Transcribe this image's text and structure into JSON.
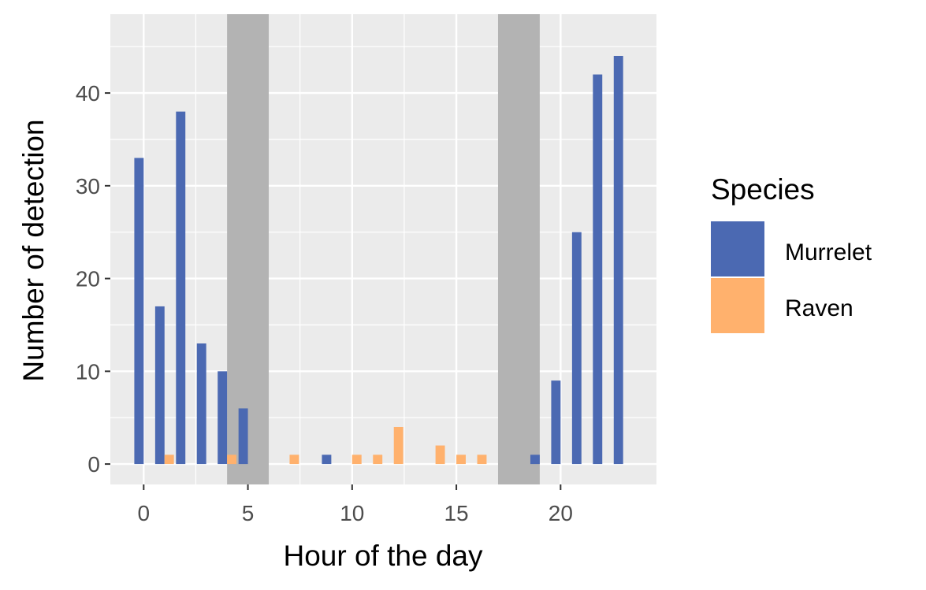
{
  "chart_data": {
    "type": "bar",
    "title": "",
    "xlabel": "Hour of the day",
    "ylabel": "Number of detection",
    "xlim": [
      -1.6,
      24.6
    ],
    "ylim": [
      -2.2,
      48.5
    ],
    "xticks": [
      0,
      5,
      10,
      15,
      20
    ],
    "yticks": [
      0,
      10,
      20,
      30,
      40
    ],
    "grid": true,
    "legend": {
      "title": "Species",
      "position": "right"
    },
    "shaded_periods": [
      [
        4,
        6
      ],
      [
        17,
        19
      ]
    ],
    "series": [
      {
        "name": "Murrelet",
        "color": "#4b69b2",
        "points": [
          {
            "hour": 0,
            "value": 33
          },
          {
            "hour": 1,
            "value": 17
          },
          {
            "hour": 2,
            "value": 38
          },
          {
            "hour": 3,
            "value": 13
          },
          {
            "hour": 4,
            "value": 10
          },
          {
            "hour": 5,
            "value": 6
          },
          {
            "hour": 9,
            "value": 1
          },
          {
            "hour": 19,
            "value": 1
          },
          {
            "hour": 20,
            "value": 9
          },
          {
            "hour": 21,
            "value": 25
          },
          {
            "hour": 22,
            "value": 42
          },
          {
            "hour": 23,
            "value": 44
          }
        ]
      },
      {
        "name": "Raven",
        "color": "#ffb16d",
        "points": [
          {
            "hour": 1,
            "value": 1
          },
          {
            "hour": 4,
            "value": 1
          },
          {
            "hour": 7,
            "value": 1
          },
          {
            "hour": 10,
            "value": 1
          },
          {
            "hour": 11,
            "value": 1
          },
          {
            "hour": 12,
            "value": 4
          },
          {
            "hour": 14,
            "value": 2
          },
          {
            "hour": 15,
            "value": 1
          },
          {
            "hour": 16,
            "value": 1
          }
        ]
      }
    ]
  },
  "colors": {
    "panel_background": "#ebebeb",
    "grid_line": "#ffffff",
    "shade": "#b3b3b3"
  }
}
